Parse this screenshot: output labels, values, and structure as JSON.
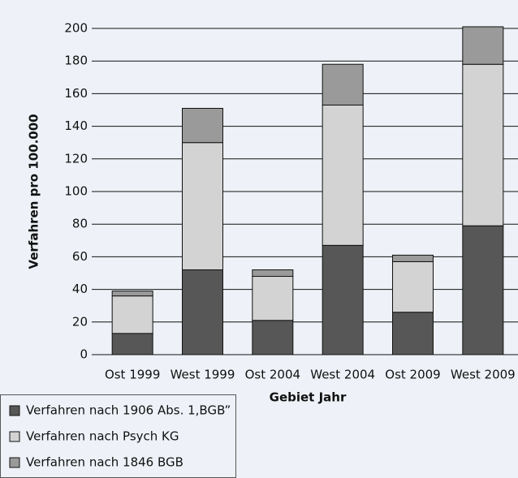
{
  "chart_data": {
    "type": "stacked-bar",
    "y_label": "Verfahren pro 100.000",
    "x_label": "Gebiet Jahr",
    "categories": [
      "Ost 1999",
      "West 1999",
      "Ost 2004",
      "West 2004",
      "Ost 2009",
      "West 2009"
    ],
    "series": [
      {
        "name": "Verfahren nach 1906 Abs. 1,BGB”",
        "color": "#575757",
        "values": [
          13,
          52,
          21,
          67,
          26,
          79
        ]
      },
      {
        "name": "Verfahren nach Psych KG",
        "color": "#d3d3d3",
        "values": [
          23,
          78,
          27,
          86,
          31,
          99
        ]
      },
      {
        "name": "Verfahren nach 1846 BGB",
        "color": "#9a9a9a",
        "values": [
          3,
          21,
          4,
          25,
          4,
          23
        ]
      }
    ],
    "ylim": [
      0,
      200
    ],
    "yticks": [
      0,
      20,
      40,
      60,
      80,
      100,
      120,
      140,
      160,
      180,
      200
    ],
    "grid": true
  }
}
